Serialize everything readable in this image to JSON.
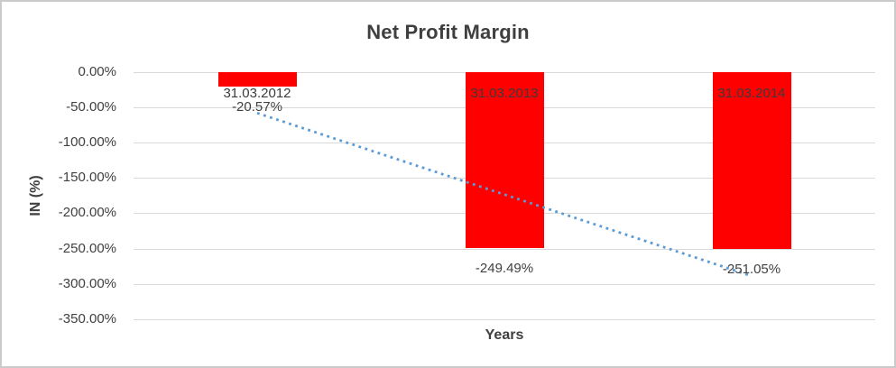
{
  "chart_data": {
    "type": "bar",
    "title": "Net Profit Margin",
    "xlabel": "Years",
    "ylabel": "IN (%)",
    "categories": [
      "31.03.2012",
      "31.03.2013",
      "31.03.2014"
    ],
    "values": [
      -20.57,
      -249.49,
      -251.05
    ],
    "data_labels": [
      "-20.57%",
      "-249.49%",
      "-251.05%"
    ],
    "y_ticks": [
      {
        "value": 0,
        "label": "0.00%"
      },
      {
        "value": -50,
        "label": "-50.00%"
      },
      {
        "value": -100,
        "label": "-100.00%"
      },
      {
        "value": -150,
        "label": "-150.00%"
      },
      {
        "value": -200,
        "label": "-200.00%"
      },
      {
        "value": -250,
        "label": "-250.00%"
      },
      {
        "value": -300,
        "label": "-300.00%"
      },
      {
        "value": -350,
        "label": "-350.00%"
      }
    ],
    "ylim": [
      -350,
      0
    ],
    "grid": true,
    "legend": "none",
    "trendline": {
      "type": "linear",
      "style": "dotted"
    },
    "colors": {
      "bar": "#ff0000",
      "trendline": "#5b9bd5",
      "gridline": "#d9d9d9",
      "text": "#404040",
      "border": "#cbcaca"
    }
  }
}
